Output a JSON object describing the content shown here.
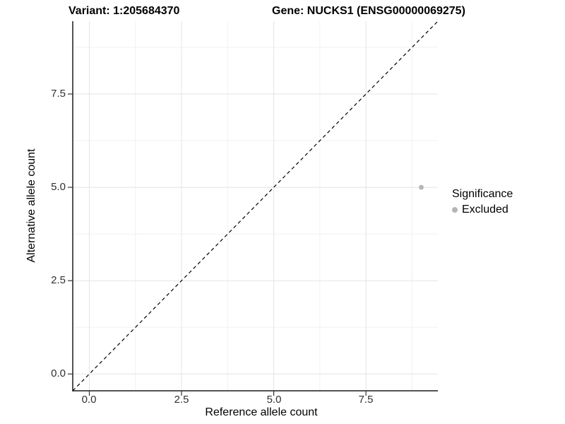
{
  "chart_data": {
    "type": "scatter",
    "title_left": "Variant: 1:205684370",
    "title_right": "Gene: NUCKS1 (ENSG00000069275)",
    "xlabel": "Reference allele count",
    "ylabel": "Alternative allele count",
    "xlim": [
      -0.45,
      9.45
    ],
    "ylim": [
      -0.45,
      9.45
    ],
    "x_ticks": {
      "values": [
        0.0,
        2.5,
        5.0,
        7.5
      ],
      "labels": [
        "0.0",
        "2.5",
        "5.0",
        "7.5"
      ]
    },
    "y_ticks": {
      "values": [
        0.0,
        2.5,
        5.0,
        7.5
      ],
      "labels": [
        "0.0",
        "2.5",
        "5.0",
        "7.5"
      ]
    },
    "x_minor_ticks": [
      1.25,
      3.75,
      6.25,
      8.75
    ],
    "y_minor_ticks": [
      1.25,
      3.75,
      6.25,
      8.75
    ],
    "grid": true,
    "points": [
      {
        "x": 9,
        "y": 5,
        "series": "Excluded"
      }
    ],
    "reference_line": {
      "kind": "identity",
      "from": -0.45,
      "to": 9.45,
      "style": "dashed"
    },
    "legend": {
      "position": "right",
      "title": "Significance",
      "entries": [
        {
          "label": "Excluded",
          "color": "#b5b5b5"
        }
      ]
    },
    "colors": {
      "point": "#b5b5b5",
      "major_grid": "#e4e4e4",
      "minor_grid": "#f1f1f1",
      "axis_line": "#1a1a1a",
      "tick_mark": "#333333",
      "reference_line": "#000000"
    }
  }
}
